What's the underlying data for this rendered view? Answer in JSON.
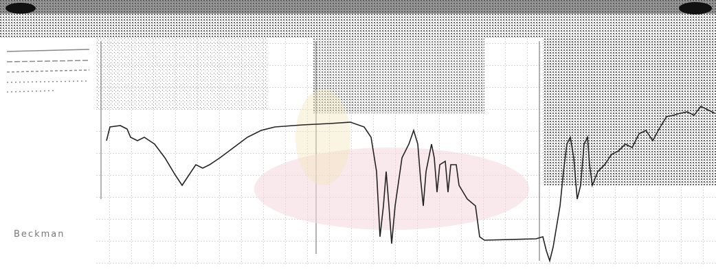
{
  "label": "Beckman"
}
